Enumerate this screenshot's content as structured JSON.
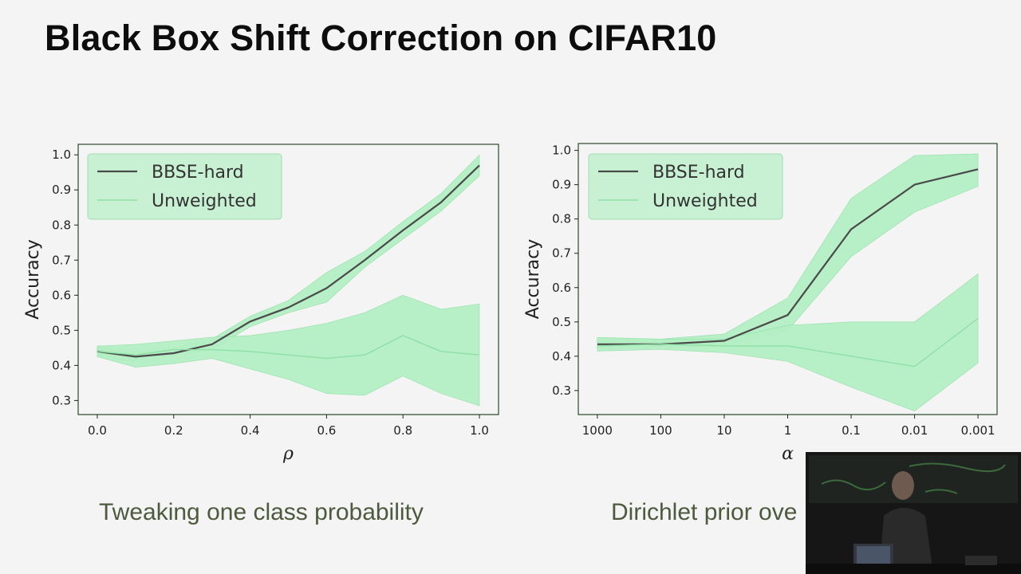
{
  "slide": {
    "title": "Black Box Shift Correction on CIFAR10",
    "captions": [
      "Tweaking one class probability",
      "Dirichlet prior ove"
    ]
  },
  "colors": {
    "bbse_line": "#4a4a4a",
    "band_fill": "#b4efc4",
    "band_edge": "#8fe0a6",
    "frame": "#2b4a2b",
    "text": "#222222",
    "caption": "#4d5a3e"
  },
  "chart_data": [
    {
      "type": "line",
      "xlabel": "ρ",
      "ylabel": "Accuracy",
      "xscale": "linear",
      "xlim": [
        -0.05,
        1.05
      ],
      "ylim": [
        0.26,
        1.03
      ],
      "xticks": [
        0.0,
        0.2,
        0.4,
        0.6,
        0.8,
        1.0
      ],
      "xticklabels": [
        "0.0",
        "0.2",
        "0.4",
        "0.6",
        "0.8",
        "1.0"
      ],
      "yticks": [
        0.3,
        0.4,
        0.5,
        0.6,
        0.7,
        0.8,
        0.9,
        1.0
      ],
      "yticklabels": [
        "0.3",
        "0.4",
        "0.5",
        "0.6",
        "0.7",
        "0.8",
        "0.9",
        "1.0"
      ],
      "legend": {
        "position": "top-left",
        "entries": [
          "BBSE-hard",
          "Unweighted"
        ]
      },
      "x": [
        0.0,
        0.1,
        0.2,
        0.3,
        0.4,
        0.5,
        0.6,
        0.7,
        0.8,
        0.9,
        1.0
      ],
      "series": [
        {
          "name": "BBSE-hard",
          "values": [
            0.44,
            0.425,
            0.435,
            0.46,
            0.525,
            0.565,
            0.62,
            0.7,
            0.785,
            0.865,
            0.97
          ],
          "lower": [
            0.425,
            0.41,
            0.43,
            0.445,
            0.51,
            0.55,
            0.58,
            0.68,
            0.76,
            0.84,
            0.94
          ],
          "upper": [
            0.455,
            0.44,
            0.45,
            0.475,
            0.54,
            0.585,
            0.665,
            0.725,
            0.81,
            0.89,
            1.0
          ]
        },
        {
          "name": "Unweighted",
          "values": [
            0.44,
            0.43,
            0.445,
            0.445,
            0.44,
            0.43,
            0.42,
            0.43,
            0.485,
            0.44,
            0.43
          ],
          "lower": [
            0.425,
            0.395,
            0.405,
            0.42,
            0.39,
            0.36,
            0.32,
            0.315,
            0.37,
            0.32,
            0.285
          ],
          "upper": [
            0.455,
            0.46,
            0.47,
            0.48,
            0.485,
            0.5,
            0.52,
            0.55,
            0.6,
            0.56,
            0.575
          ]
        }
      ]
    },
    {
      "type": "line",
      "xlabel": "α",
      "ylabel": "Accuracy",
      "xscale": "log",
      "xlim": [
        -0.3,
        6.3
      ],
      "ylim": [
        0.23,
        1.02
      ],
      "xticks": [
        0,
        1,
        2,
        3,
        4,
        5,
        6
      ],
      "xticklabels": [
        "1000",
        "100",
        "10",
        "1",
        "0.1",
        "0.01",
        "0.001"
      ],
      "yticks": [
        0.3,
        0.4,
        0.5,
        0.6,
        0.7,
        0.8,
        0.9,
        1.0
      ],
      "yticklabels": [
        "0.3",
        "0.4",
        "0.5",
        "0.6",
        "0.7",
        "0.8",
        "0.9",
        "1.0"
      ],
      "legend": {
        "position": "top-left",
        "entries": [
          "BBSE-hard",
          "Unweighted"
        ]
      },
      "x": [
        0,
        1,
        2,
        3,
        4,
        5,
        6
      ],
      "series": [
        {
          "name": "BBSE-hard",
          "values": [
            0.435,
            0.435,
            0.445,
            0.52,
            0.77,
            0.9,
            0.945
          ],
          "lower": [
            0.42,
            0.425,
            0.43,
            0.475,
            0.69,
            0.82,
            0.895
          ],
          "upper": [
            0.45,
            0.45,
            0.465,
            0.57,
            0.86,
            0.985,
            0.99
          ]
        },
        {
          "name": "Unweighted",
          "values": [
            0.43,
            0.435,
            0.43,
            0.43,
            0.4,
            0.37,
            0.51
          ],
          "lower": [
            0.415,
            0.42,
            0.41,
            0.385,
            0.31,
            0.24,
            0.38
          ],
          "upper": [
            0.455,
            0.45,
            0.45,
            0.49,
            0.5,
            0.5,
            0.64
          ]
        }
      ]
    }
  ]
}
